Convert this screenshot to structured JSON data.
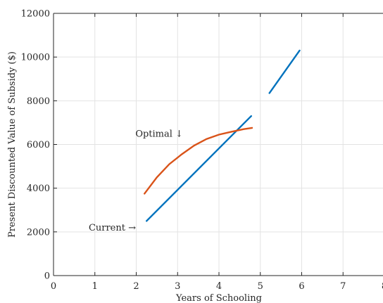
{
  "chart_data": {
    "type": "line",
    "xlabel": "Years of Schooling",
    "ylabel": "Present Discounted Value of Subsidy ($)",
    "xlim": [
      0,
      8
    ],
    "ylim": [
      0,
      12000
    ],
    "xticks": [
      0,
      1,
      2,
      3,
      4,
      5,
      6,
      7,
      8
    ],
    "yticks": [
      0,
      2000,
      4000,
      6000,
      8000,
      10000,
      12000
    ],
    "grid": true,
    "series": [
      {
        "name": "Current",
        "color": "#0072BD",
        "segments": [
          [
            [
              2.25,
              2500
            ],
            [
              4.78,
              7300
            ]
          ],
          [
            [
              5.22,
              8350
            ],
            [
              5.95,
              10300
            ]
          ]
        ]
      },
      {
        "name": "Optimal",
        "color": "#D95319",
        "segments": [
          [
            [
              2.2,
              3750
            ],
            [
              2.5,
              4500
            ],
            [
              2.8,
              5100
            ],
            [
              3.1,
              5550
            ],
            [
              3.4,
              5950
            ],
            [
              3.7,
              6250
            ],
            [
              4.0,
              6450
            ],
            [
              4.3,
              6580
            ],
            [
              4.6,
              6700
            ],
            [
              4.8,
              6760
            ]
          ]
        ]
      }
    ],
    "annotations": [
      {
        "text": "Optimal ↓",
        "x": 1.98,
        "y": 6500
      },
      {
        "text": "Current →",
        "x": 0.85,
        "y": 2200
      }
    ]
  }
}
